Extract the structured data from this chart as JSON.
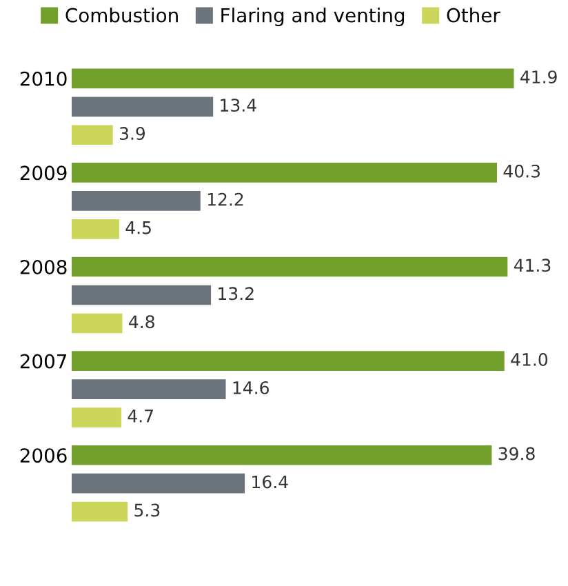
{
  "chart_data": {
    "type": "bar",
    "orientation": "horizontal",
    "categories": [
      "2010",
      "2009",
      "2008",
      "2007",
      "2006"
    ],
    "series": [
      {
        "name": "Combustion",
        "color": "#72a02c",
        "values": [
          41.9,
          40.3,
          41.3,
          41.0,
          39.8
        ],
        "value_labels": [
          "41.9",
          "40.3",
          "41.3",
          "41.0",
          "39.8"
        ]
      },
      {
        "name": "Flaring and venting",
        "color": "#6b737c",
        "values": [
          13.4,
          12.2,
          13.2,
          14.6,
          16.4
        ]
      },
      {
        "name": "Other",
        "color": "#ccd65a",
        "values": [
          3.9,
          4.5,
          4.8,
          4.7,
          5.3
        ]
      }
    ],
    "data_labels": true,
    "legend": "top left",
    "tick_labels": "y",
    "grid": false
  }
}
